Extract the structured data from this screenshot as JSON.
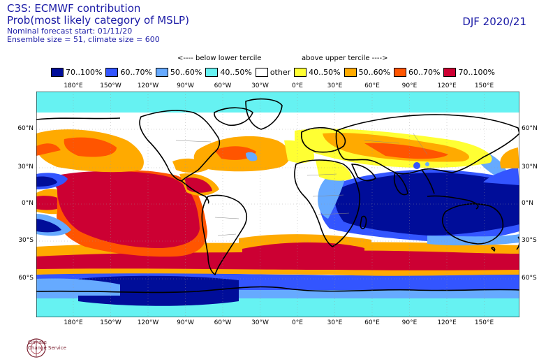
{
  "header": {
    "title": "C3S: ECMWF contribution",
    "subtitle": "Prob(most likely category of MSLP)",
    "forecast_start": "Nominal forecast start: 01/11/20",
    "ensemble": "Ensemble size = 51, climate size = 600",
    "season": "DJF 2020/21"
  },
  "tercile": {
    "below": "<---- below lower tercile",
    "above": "above upper tercile ---->"
  },
  "legend": [
    {
      "label": "70..100%",
      "color": "#000d99"
    },
    {
      "label": "60..70%",
      "color": "#3355ff"
    },
    {
      "label": "50..60%",
      "color": "#66aaff"
    },
    {
      "label": "40..50%",
      "color": "#66f2f2"
    },
    {
      "label": "other",
      "color": "#ffffff"
    },
    {
      "label": "40..50%",
      "color": "#ffff33"
    },
    {
      "label": "50..60%",
      "color": "#ffaa00"
    },
    {
      "label": "60..70%",
      "color": "#ff5500"
    },
    {
      "label": "70..100%",
      "color": "#cc0033"
    }
  ],
  "axes": {
    "lon_labels": [
      "180°E",
      "150°W",
      "120°W",
      "90°W",
      "60°W",
      "30°W",
      "0°E",
      "30°E",
      "60°E",
      "90°E",
      "120°E",
      "150°E"
    ],
    "lat_labels": [
      "60°N",
      "30°N",
      "0°N",
      "30°S",
      "60°S"
    ]
  },
  "logo": {
    "line1": "Climate",
    "line2": "Change Service"
  }
}
